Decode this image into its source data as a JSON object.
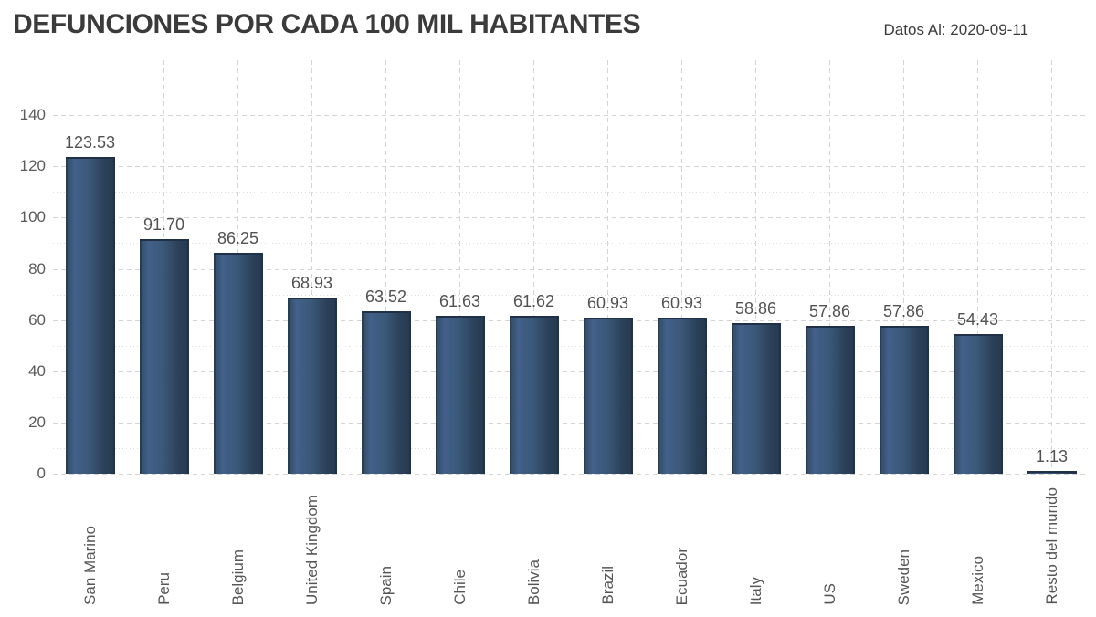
{
  "header": {
    "title": "DEFUNCIONES POR CADA 100 MIL HABITANTES",
    "date_label": "Datos Al: 2020-09-11"
  },
  "chart_data": {
    "type": "bar",
    "title": "DEFUNCIONES POR CADA 100 MIL HABITANTES",
    "subtitle": "Datos Al: 2020-09-11",
    "categories": [
      "San Marino",
      "Peru",
      "Belgium",
      "United Kingdom",
      "Spain",
      "Chile",
      "Bolivia",
      "Brazil",
      "Ecuador",
      "Italy",
      "US",
      "Sweden",
      "Mexico",
      "Resto del mundo"
    ],
    "values": [
      123.53,
      91.7,
      86.25,
      68.93,
      63.52,
      61.63,
      61.62,
      60.93,
      60.93,
      58.86,
      57.86,
      57.86,
      54.43,
      1.13
    ],
    "data_labels": [
      "123.53",
      "91.70",
      "86.25",
      "68.93",
      "63.52",
      "61.63",
      "61.62",
      "60.93",
      "60.93",
      "58.86",
      "57.86",
      "57.86",
      "54.43",
      "1.13"
    ],
    "xlabel": "",
    "ylabel": "",
    "ylim": [
      0,
      160
    ],
    "yticks": [
      0,
      20,
      40,
      60,
      80,
      100,
      120,
      140
    ],
    "minor_yticks": [
      10,
      30,
      50,
      70,
      90,
      110,
      130
    ],
    "grid": "horizontal major dashed + minor dotted, vertical dashed at category centers",
    "legend": "none",
    "bar_color_gradient": [
      "#31485f",
      "#42608a",
      "#253950"
    ],
    "bar_top_cap_color": "#203147",
    "gridline_color": "#d4d4d4",
    "axis_label_color": "#5b5b5b",
    "data_label_color": "#525252",
    "title_color": "#3b3b3b",
    "background_color": "#ffffff"
  }
}
